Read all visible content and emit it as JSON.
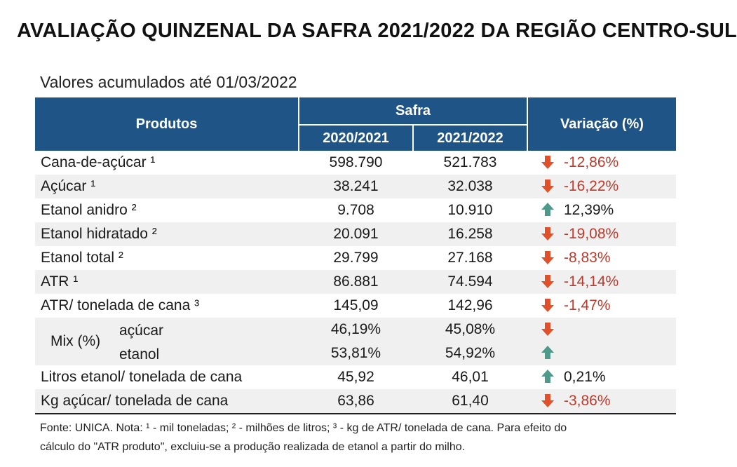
{
  "title": "AVALIAÇÃO QUINZENAL DA SAFRA 2021/2022 DA REGIÃO CENTRO-SUL",
  "subtitle": "Valores acumulados até 01/03/2022",
  "colors": {
    "header_bg": "#1f5486",
    "down_arrow": "#e0502a",
    "up_arrow": "#4e9a8a",
    "negative_text": "#c0392b"
  },
  "table": {
    "headers": {
      "produtos": "Produtos",
      "safra": "Safra",
      "y1": "2020/2021",
      "y2": "2021/2022",
      "variacao": "Variação (%)"
    },
    "rows": [
      {
        "label": "Cana-de-açúcar ¹",
        "v1": "598.790",
        "v2": "521.783",
        "trend": "down",
        "var": "-12,86%"
      },
      {
        "label": "Açúcar ¹",
        "v1": "38.241",
        "v2": "32.038",
        "trend": "down",
        "var": "-16,22%"
      },
      {
        "label": "Etanol anidro ²",
        "v1": "9.708",
        "v2": "10.910",
        "trend": "up",
        "var": "12,39%"
      },
      {
        "label": "Etanol hidratado ²",
        "v1": "20.091",
        "v2": "16.258",
        "trend": "down",
        "var": "-19,08%"
      },
      {
        "label": "Etanol total ²",
        "v1": "29.799",
        "v2": "27.168",
        "trend": "down",
        "var": "-8,83%"
      },
      {
        "label": "ATR ¹",
        "v1": "86.881",
        "v2": "74.594",
        "trend": "down",
        "var": "-14,14%"
      },
      {
        "label": "ATR/ tonelada de cana ³",
        "v1": "145,09",
        "v2": "142,96",
        "trend": "down",
        "var": "-1,47%"
      }
    ],
    "mix": {
      "label": "Mix (%)",
      "rows": [
        {
          "label": "açúcar",
          "v1": "46,19%",
          "v2": "45,08%",
          "trend": "down"
        },
        {
          "label": "etanol",
          "v1": "53,81%",
          "v2": "54,92%",
          "trend": "up"
        }
      ]
    },
    "tail_rows": [
      {
        "label": "Litros etanol/ tonelada de cana",
        "v1": "45,92",
        "v2": "46,01",
        "trend": "up",
        "var": "0,21%"
      },
      {
        "label": "Kg açúcar/ tonelada de cana",
        "v1": "63,86",
        "v2": "61,40",
        "trend": "down",
        "var": "-3,86%"
      }
    ]
  },
  "footnote": {
    "line1": "Fonte: UNICA. Nota: ¹ - mil toneladas; ² - milhões de litros; ³ - kg de ATR/ tonelada de cana. Para efeito do",
    "line2": "cálculo do \"ATR produto\", excluiu-se a produção realizada de etanol a partir do milho."
  }
}
